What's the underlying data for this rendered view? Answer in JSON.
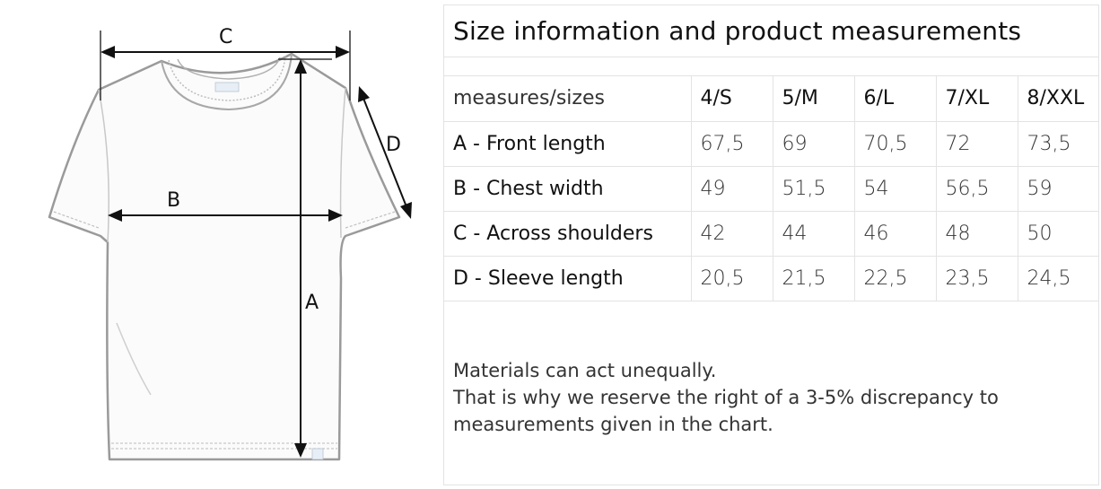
{
  "diagram": {
    "labels": {
      "a": "A",
      "b": "B",
      "c": "C",
      "d": "D"
    }
  },
  "panel": {
    "title": "Size information and product measurements",
    "table": {
      "corner": "measures/sizes",
      "sizes": [
        "4/S",
        "5/M",
        "6/L",
        "7/XL",
        "8/XXL"
      ],
      "rows": [
        {
          "label": "A - Front length",
          "values": [
            "67,5",
            "69",
            "70,5",
            "72",
            "73,5"
          ]
        },
        {
          "label": "B - Chest width",
          "values": [
            "49",
            "51,5",
            "54",
            "56,5",
            "59"
          ]
        },
        {
          "label": "C - Across shoulders",
          "values": [
            "42",
            "44",
            "46",
            "48",
            "50"
          ]
        },
        {
          "label": "D - Sleeve length",
          "values": [
            "20,5",
            "21,5",
            "22,5",
            "23,5",
            "24,5"
          ]
        }
      ]
    },
    "note": {
      "line1": "Materials can act unequally.",
      "line2": "That is why we reserve the right of a 3-5% discrepancy to",
      "line3": "measurements given in the chart."
    }
  }
}
